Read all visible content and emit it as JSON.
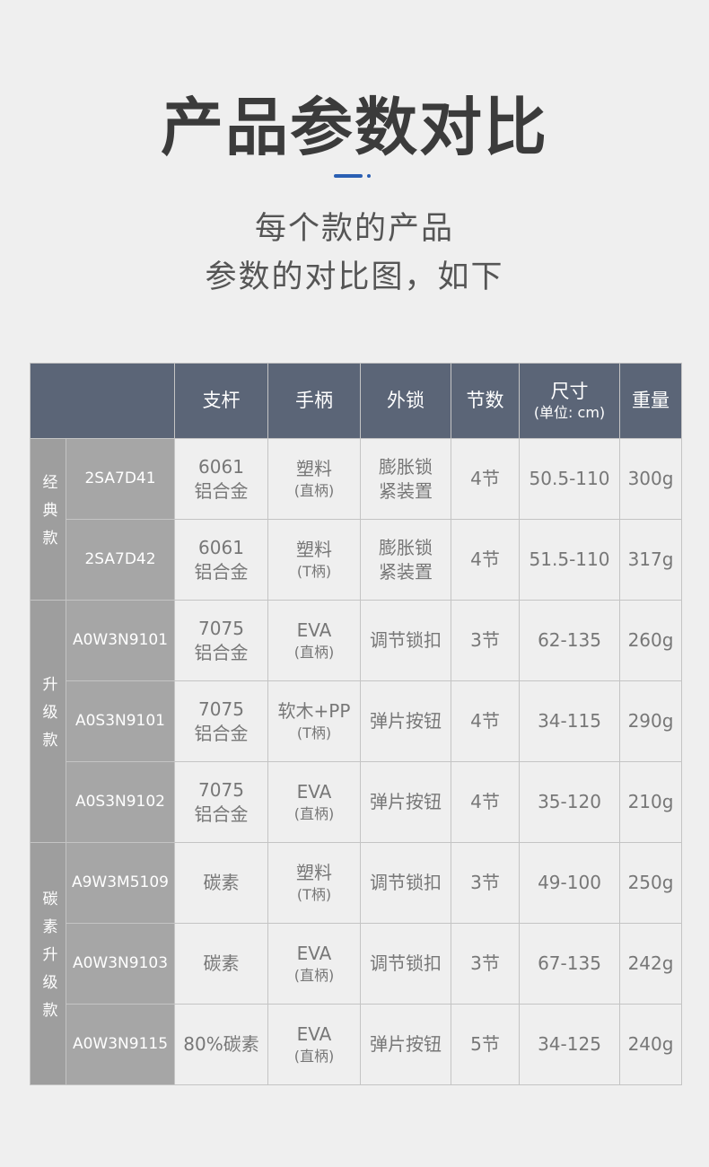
{
  "title": "产品参数对比",
  "subtitle": [
    "每个款的产品",
    "参数的对比图，如下"
  ],
  "accent_color": "#2a5fb3",
  "table": {
    "headers": [
      "支杆",
      "手柄",
      "外锁",
      "节数",
      "尺寸",
      "重量"
    ],
    "size_unit": "(单位: cm)",
    "groups": [
      {
        "name": "经典款",
        "rows": [
          {
            "model": "2SA7D41",
            "pole": [
              "6061",
              "铝合金"
            ],
            "handle": [
              "塑料",
              "(直柄)"
            ],
            "lock": [
              "膨胀锁",
              "紧装置"
            ],
            "sections": "4节",
            "size": "50.5-110",
            "weight": "300g"
          },
          {
            "model": "2SA7D42",
            "pole": [
              "6061",
              "铝合金"
            ],
            "handle": [
              "塑料",
              "(T柄)"
            ],
            "lock": [
              "膨胀锁",
              "紧装置"
            ],
            "sections": "4节",
            "size": "51.5-110",
            "weight": "317g"
          }
        ]
      },
      {
        "name": "升级款",
        "rows": [
          {
            "model": "A0W3N9101",
            "pole": [
              "7075",
              "铝合金"
            ],
            "handle": [
              "EVA",
              "(直柄)"
            ],
            "lock": [
              "调节锁扣"
            ],
            "sections": "3节",
            "size": "62-135",
            "weight": "260g"
          },
          {
            "model": "A0S3N9101",
            "pole": [
              "7075",
              "铝合金"
            ],
            "handle": [
              "软木+PP",
              "(T柄)"
            ],
            "lock": [
              "弹片按钮"
            ],
            "sections": "4节",
            "size": "34-115",
            "weight": "290g"
          },
          {
            "model": "A0S3N9102",
            "pole": [
              "7075",
              "铝合金"
            ],
            "handle": [
              "EVA",
              "(直柄)"
            ],
            "lock": [
              "弹片按钮"
            ],
            "sections": "4节",
            "size": "35-120",
            "weight": "210g"
          }
        ]
      },
      {
        "name": "碳素升级款",
        "rows": [
          {
            "model": "A9W3M5109",
            "pole": [
              "碳素"
            ],
            "handle": [
              "塑料",
              "(T柄)"
            ],
            "lock": [
              "调节锁扣"
            ],
            "sections": "3节",
            "size": "49-100",
            "weight": "250g"
          },
          {
            "model": "A0W3N9103",
            "pole": [
              "碳素"
            ],
            "handle": [
              "EVA",
              "(直柄)"
            ],
            "lock": [
              "调节锁扣"
            ],
            "sections": "3节",
            "size": "67-135",
            "weight": "242g"
          },
          {
            "model": "A0W3N9115",
            "pole": [
              "80%碳素"
            ],
            "handle": [
              "EVA",
              "(直柄)"
            ],
            "lock": [
              "弹片按钮"
            ],
            "sections": "5节",
            "size": "34-125",
            "weight": "240g"
          }
        ]
      }
    ]
  }
}
